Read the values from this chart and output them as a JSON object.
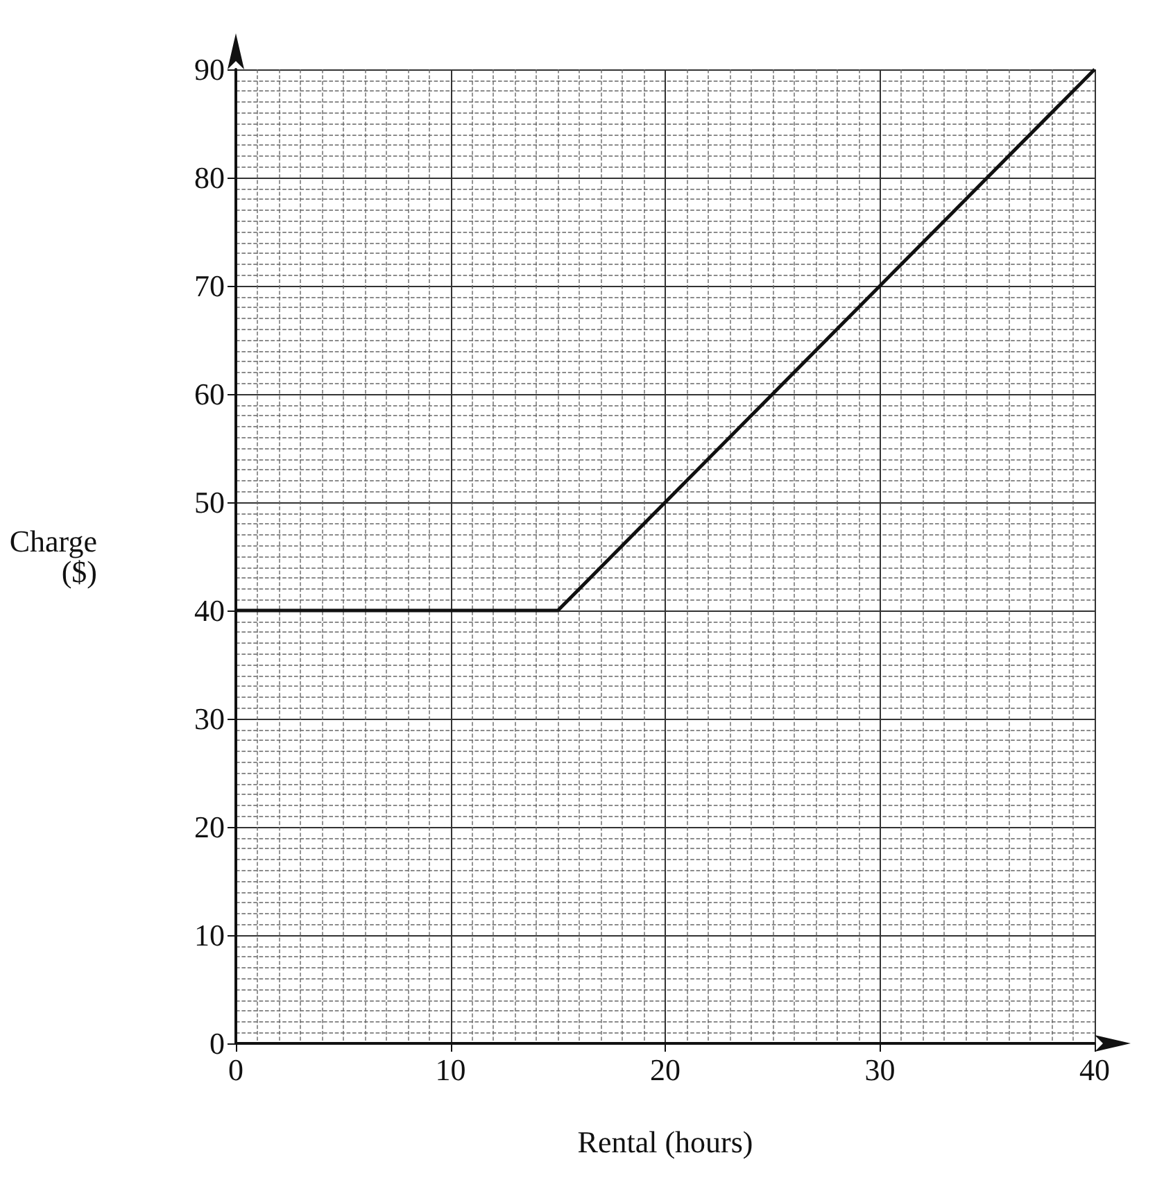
{
  "chart_data": {
    "type": "line",
    "xlabel": "Rental (hours)",
    "ylabel": "Charge\n($)",
    "x": [
      0,
      15,
      40
    ],
    "series": [
      {
        "color": "#111111",
        "values": [
          40,
          40,
          90
        ]
      }
    ],
    "xlim": [
      0,
      40
    ],
    "xticks": [
      0,
      10,
      20,
      30,
      40
    ],
    "ylim": [
      0,
      90
    ],
    "yticks": [
      0,
      10,
      20,
      30,
      40,
      50,
      60,
      70,
      80,
      90
    ],
    "grid": true,
    "marker": "none",
    "line_style": "solid"
  }
}
